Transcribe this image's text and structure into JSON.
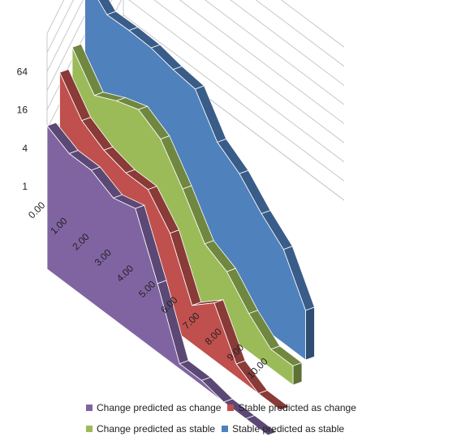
{
  "chart_data": {
    "type": "area",
    "variant": "3d",
    "y_scale": "log2",
    "y_ticks": [
      "1",
      "4",
      "16",
      "64"
    ],
    "y_tick_values": [
      1,
      4,
      16,
      64
    ],
    "x_ticks": [
      "0.00",
      "1.00",
      "2.00",
      "3.00",
      "4.00",
      "5.00",
      "6.00",
      "7.00",
      "8.00",
      "9.00",
      "10.00"
    ],
    "x": [
      0,
      1,
      2,
      3,
      4,
      5,
      6,
      7,
      8,
      9,
      10
    ],
    "grid": true,
    "legend_position": "bottom",
    "series": [
      {
        "name": "Stable predicted as stable",
        "color": "#4f81bd",
        "values": [
          130,
          60,
          62,
          60,
          50,
          45,
          12,
          7,
          3,
          1.5,
          0.3
        ]
      },
      {
        "name": "Change predicted as stable",
        "color": "#9bbb59",
        "values": [
          25,
          8,
          12,
          16,
          10,
          3,
          0.75,
          0.5,
          0.2,
          0.1,
          0.1
        ]
      },
      {
        "name": "Stable predicted as change",
        "color": "#c0504d",
        "values": [
          25,
          8,
          5,
          4,
          4,
          1.5,
          0.2,
          0.4,
          0.08,
          0.05,
          0.05
        ]
      },
      {
        "name": "Change predicted as change",
        "color": "#8064a2",
        "values": [
          9,
          6,
          6,
          4,
          5,
          0.6,
          0.06,
          0.06,
          0.05,
          0.05,
          0.05
        ]
      }
    ]
  }
}
